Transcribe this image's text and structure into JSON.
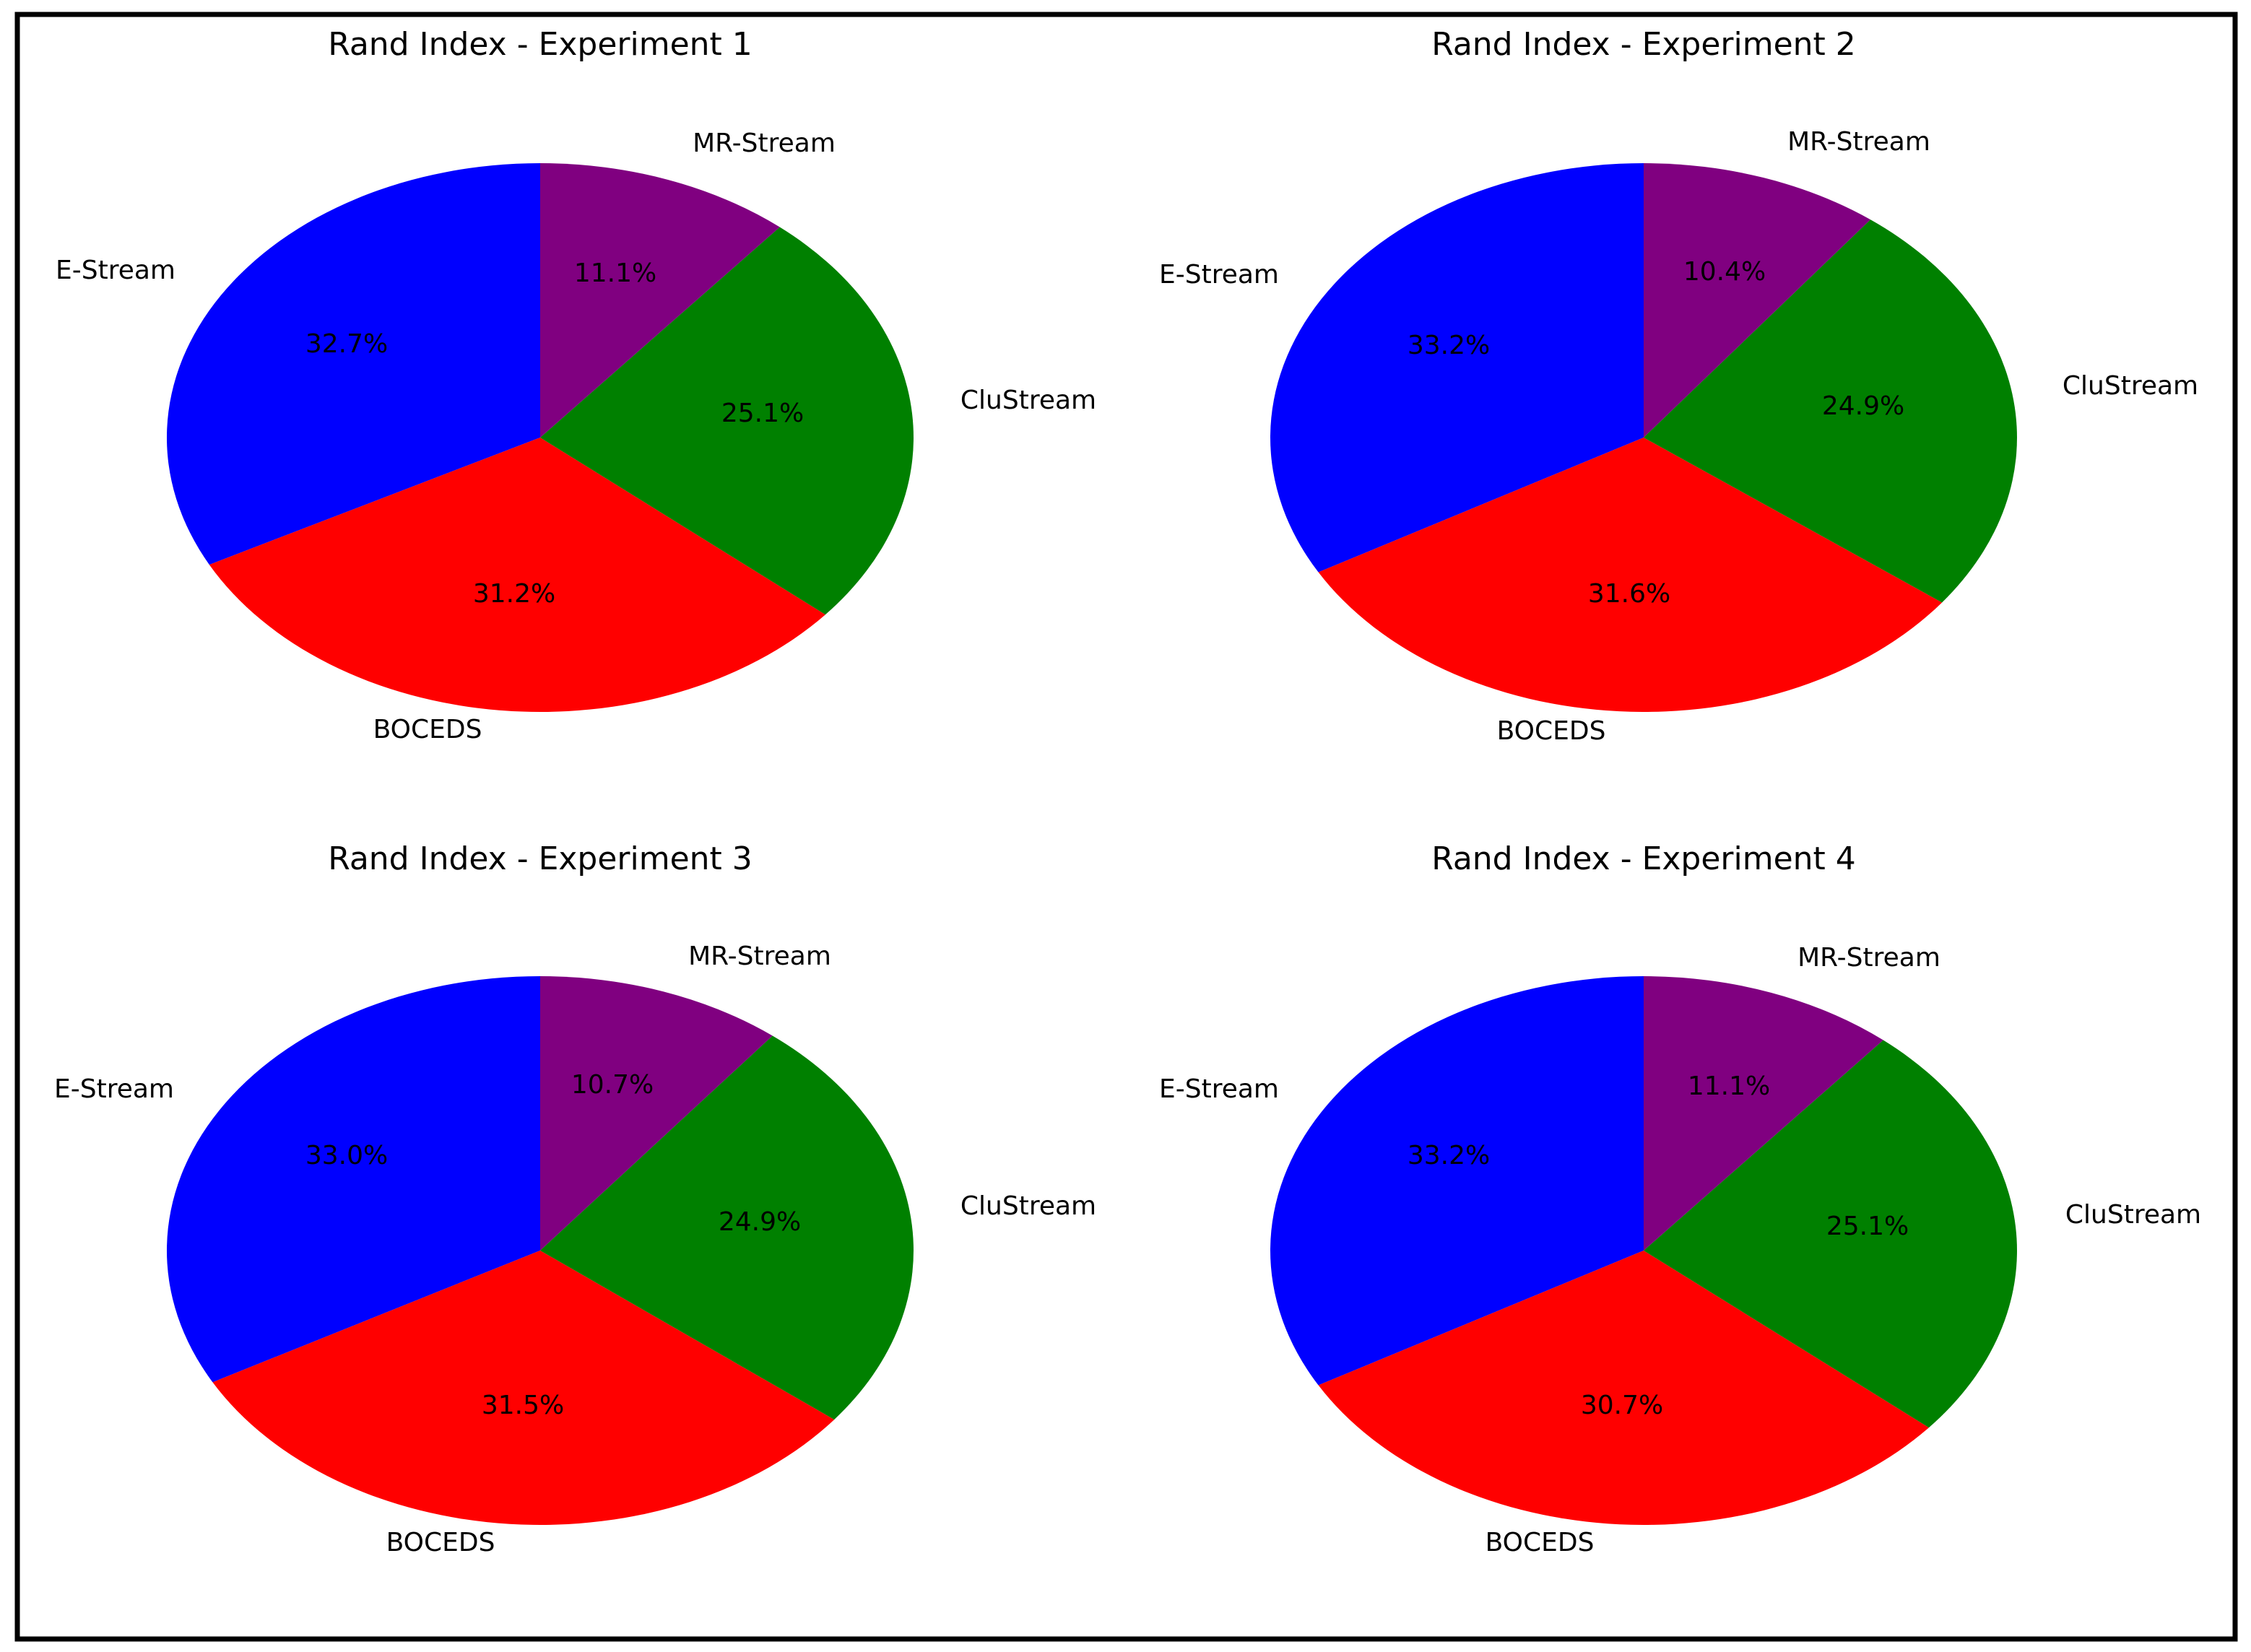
{
  "chart_data": [
    {
      "type": "pie",
      "title": "Rand Index - Experiment 1",
      "categories": [
        "E-Stream",
        "BOCEDS",
        "CluStream",
        "MR-Stream"
      ],
      "values": [
        32.7,
        31.2,
        25.1,
        11.1
      ],
      "labels": [
        "32.7%",
        "31.2%",
        "25.1%",
        "11.1%"
      ],
      "colors": [
        "#0000ff",
        "#ff0000",
        "#008000",
        "#800080"
      ],
      "start_angle_deg": 90,
      "direction": "counterclockwise"
    },
    {
      "type": "pie",
      "title": "Rand Index - Experiment 2",
      "categories": [
        "E-Stream",
        "BOCEDS",
        "CluStream",
        "MR-Stream"
      ],
      "values": [
        33.2,
        31.6,
        24.9,
        10.4
      ],
      "labels": [
        "33.2%",
        "31.6%",
        "24.9%",
        "10.4%"
      ],
      "colors": [
        "#0000ff",
        "#ff0000",
        "#008000",
        "#800080"
      ],
      "start_angle_deg": 90,
      "direction": "counterclockwise"
    },
    {
      "type": "pie",
      "title": "Rand Index - Experiment 3",
      "categories": [
        "E-Stream",
        "BOCEDS",
        "CluStream",
        "MR-Stream"
      ],
      "values": [
        33.0,
        31.5,
        24.9,
        10.7
      ],
      "labels": [
        "33.0%",
        "31.5%",
        "24.9%",
        "10.7%"
      ],
      "colors": [
        "#0000ff",
        "#ff0000",
        "#008000",
        "#800080"
      ],
      "start_angle_deg": 90,
      "direction": "counterclockwise"
    },
    {
      "type": "pie",
      "title": "Rand Index - Experiment 4",
      "categories": [
        "E-Stream",
        "BOCEDS",
        "CluStream",
        "MR-Stream"
      ],
      "values": [
        33.2,
        30.7,
        25.1,
        11.1
      ],
      "labels": [
        "33.2%",
        "30.7%",
        "25.1%",
        "11.1%"
      ],
      "colors": [
        "#0000ff",
        "#ff0000",
        "#008000",
        "#800080"
      ],
      "start_angle_deg": 90,
      "direction": "counterclockwise"
    }
  ]
}
